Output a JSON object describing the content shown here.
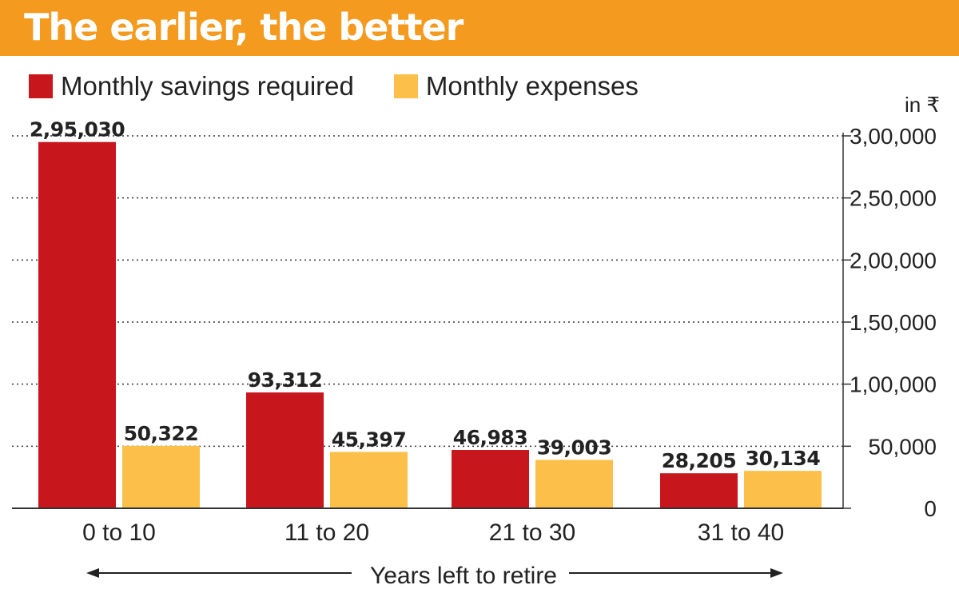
{
  "header": {
    "title": "The earlier, the better"
  },
  "colors": {
    "banner": "#f39a1f",
    "savings": "#c8161d",
    "expenses": "#fbbf4a"
  },
  "chart_data": {
    "type": "bar",
    "title": "The earlier, the better",
    "categories": [
      "0 to 10",
      "11 to 20",
      "21 to 30",
      "31 to 40"
    ],
    "series": [
      {
        "name": "Monthly savings required",
        "values": [
          295030,
          93312,
          46983,
          28205
        ],
        "labels": [
          "2,95,030",
          "93,312",
          "46,983",
          "28,205"
        ]
      },
      {
        "name": "Monthly expenses",
        "values": [
          50322,
          45397,
          39003,
          30134
        ],
        "labels": [
          "50,322",
          "45,397",
          "39,003",
          "30,134"
        ]
      }
    ],
    "xlabel": "Years left to retire",
    "ylabel": "in ₹",
    "ylim": [
      0,
      300000
    ],
    "yticks": [
      0,
      50000,
      100000,
      150000,
      200000,
      250000,
      300000
    ],
    "ytick_labels": [
      "0",
      "50,000",
      "1,00,000",
      "1,50,000",
      "2,00,000",
      "2,50,000",
      "3,00,000"
    ],
    "grid": true,
    "legend": "top-left"
  }
}
